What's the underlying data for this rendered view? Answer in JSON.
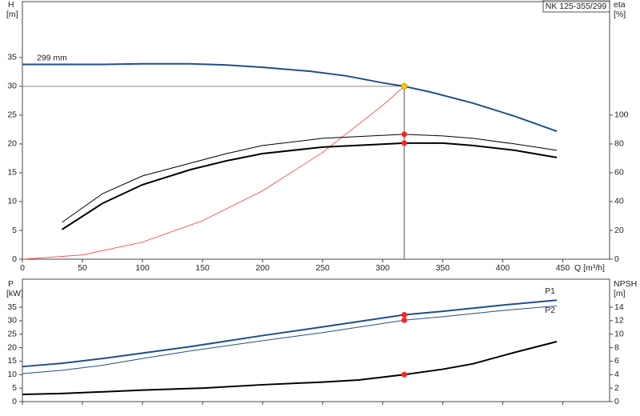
{
  "title": "NK 125-355/299",
  "chart_data": [
    {
      "type": "line",
      "xlabel": "Q [m³/h]",
      "ylabel": "H",
      "yunit": "[m]",
      "y2label": "eta",
      "y2unit": "[%]",
      "xlim": [
        0,
        489
      ],
      "xticks": [
        0,
        50,
        100,
        150,
        200,
        250,
        300,
        350,
        400,
        450
      ],
      "ylim": [
        0,
        44.7
      ],
      "yticks": [
        0,
        5,
        10,
        15,
        20,
        25,
        30,
        35
      ],
      "y2lim": [
        0,
        178.8
      ],
      "y2ticks": [
        0,
        20,
        40,
        60,
        80,
        100
      ],
      "crosshair": {
        "x": 318,
        "y": 30,
        "color": "#8a8a8a"
      },
      "series": [
        {
          "name": "299 mm",
          "color": "#1f4e8c",
          "width": 2,
          "x": [
            0,
            33,
            67,
            100,
            140,
            170,
            200,
            240,
            270,
            300,
            318,
            340,
            375,
            410,
            445
          ],
          "values": [
            33.8,
            33.8,
            33.8,
            33.9,
            33.9,
            33.7,
            33.3,
            32.6,
            31.8,
            30.6,
            30.0,
            29.0,
            27.1,
            24.8,
            22.2
          ]
        },
        {
          "color": "#ff3b3b",
          "width": 0.8,
          "x": [
            0,
            50,
            100,
            150,
            200,
            250,
            300,
            318
          ],
          "values": [
            0,
            0.74,
            2.97,
            6.68,
            11.87,
            18.54,
            26.7,
            30
          ]
        },
        {
          "color": "#000000",
          "width": 1,
          "axis": "y2",
          "x": [
            33,
            67,
            100,
            140,
            170,
            200,
            250,
            318,
            350,
            375,
            410,
            445
          ],
          "values": [
            25.6,
            45.6,
            57.8,
            66.7,
            73.3,
            78.9,
            83.9,
            86.7,
            85.6,
            83.9,
            80,
            75.6
          ]
        },
        {
          "color": "#000000",
          "width": 2,
          "axis": "y2",
          "x": [
            33,
            67,
            100,
            140,
            170,
            200,
            250,
            318,
            350,
            375,
            410,
            445
          ],
          "values": [
            20.6,
            38.9,
            51.7,
            62.2,
            68.3,
            73.3,
            77.8,
            80.6,
            80.6,
            78.9,
            75.6,
            70.6
          ]
        }
      ],
      "points": [
        {
          "x": 318,
          "value": 30,
          "color": "#ffcc00"
        },
        {
          "x": 318,
          "value": 86.7,
          "axis": "y2",
          "color": "#ff2020"
        },
        {
          "x": 318,
          "value": 80.6,
          "axis": "y2",
          "color": "#ff2020"
        }
      ]
    },
    {
      "type": "line",
      "ylabel": "P",
      "yunit": "[kW]",
      "y2label": "NPSH",
      "y2unit": "[m]",
      "xlim": [
        0,
        489
      ],
      "xticks": [
        0,
        50,
        100,
        150,
        200,
        250,
        300,
        350,
        400,
        450
      ],
      "ylim": [
        0,
        45.4
      ],
      "yticks": [
        0,
        5,
        10,
        15,
        20,
        25,
        30,
        35
      ],
      "y2lim": [
        0,
        18.16
      ],
      "y2ticks": [
        0,
        2,
        4,
        6,
        8,
        10,
        12,
        14
      ],
      "series": [
        {
          "name": "P1",
          "color": "#1f4e8c",
          "width": 2,
          "x": [
            0,
            33,
            67,
            100,
            140,
            200,
            250,
            318,
            350,
            400,
            445
          ],
          "values": [
            13,
            14.2,
            16,
            18,
            20.4,
            24.5,
            27.7,
            32.2,
            33.5,
            35.8,
            37.6
          ]
        },
        {
          "name": "P2",
          "color": "#1f4e8c",
          "width": 1,
          "x": [
            0,
            33,
            67,
            100,
            140,
            200,
            250,
            318,
            350,
            400,
            445
          ],
          "values": [
            10.4,
            11.6,
            13.5,
            16,
            18.8,
            22.6,
            25.6,
            30.2,
            31.5,
            33.8,
            35.5
          ]
        },
        {
          "color": "#000000",
          "width": 2,
          "axis": "y2",
          "x": [
            0,
            33,
            100,
            150,
            200,
            250,
            280,
            318,
            350,
            375,
            410,
            445
          ],
          "values": [
            1.07,
            1.2,
            1.7,
            2.0,
            2.5,
            2.9,
            3.2,
            4.0,
            4.8,
            5.6,
            7.3,
            8.9
          ]
        }
      ],
      "points": [
        {
          "x": 318,
          "value": 32.2,
          "color": "#ff2020"
        },
        {
          "x": 318,
          "value": 30.2,
          "color": "#ff2020"
        },
        {
          "x": 318,
          "value": 4.0,
          "axis": "y2",
          "color": "#ff2020"
        }
      ]
    }
  ]
}
